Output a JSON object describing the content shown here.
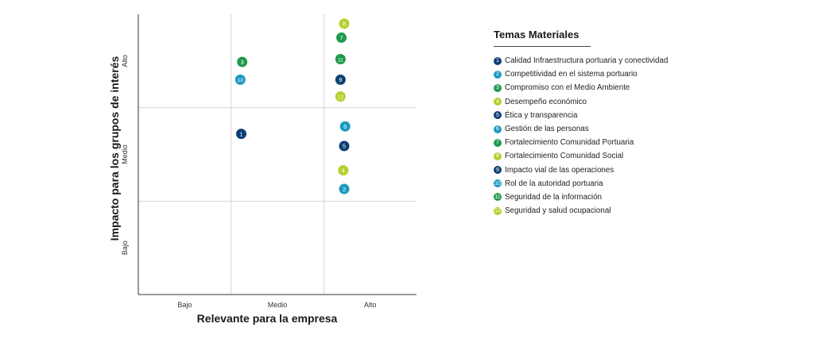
{
  "chart_data": {
    "type": "scatter",
    "xlabel": "Relevante para la empresa",
    "ylabel": "Impacto para los grupos de interés",
    "x_categories": [
      "Bajo",
      "Medio",
      "Alto"
    ],
    "y_categories": [
      "Bajo",
      "Medio",
      "Alto"
    ],
    "xlim": [
      0,
      3
    ],
    "ylim": [
      0,
      3
    ],
    "grid": true,
    "points": [
      {
        "id": "1",
        "x": 1.11,
        "y": 1.72,
        "color": "#0d3f73"
      },
      {
        "id": "2",
        "x": 2.22,
        "y": 1.13,
        "color": "#1b9ac0"
      },
      {
        "id": "3",
        "x": 1.12,
        "y": 2.49,
        "color": "#1f9a4c"
      },
      {
        "id": "4",
        "x": 2.21,
        "y": 1.33,
        "color": "#b6cf2e"
      },
      {
        "id": "5",
        "x": 2.22,
        "y": 1.59,
        "color": "#0d3f73"
      },
      {
        "id": "6",
        "x": 2.23,
        "y": 1.8,
        "color": "#1b9ac0"
      },
      {
        "id": "7",
        "x": 2.19,
        "y": 2.75,
        "color": "#1f9a4c"
      },
      {
        "id": "8",
        "x": 2.22,
        "y": 2.9,
        "color": "#b6cf2e"
      },
      {
        "id": "9",
        "x": 2.18,
        "y": 2.3,
        "color": "#0d3f73"
      },
      {
        "id": "10",
        "x": 1.1,
        "y": 2.3,
        "color": "#1b9ac0"
      },
      {
        "id": "11",
        "x": 2.18,
        "y": 2.52,
        "color": "#1f9a4c"
      },
      {
        "id": "12",
        "x": 2.18,
        "y": 2.12,
        "color": "#b6cf2e"
      }
    ]
  },
  "legend": {
    "title": "Temas Materiales",
    "placement": "right",
    "items": [
      {
        "id": "1",
        "label": "Calidad Infraestructura portuaria y conectividad",
        "color": "#0d3f73"
      },
      {
        "id": "2",
        "label": "Competitividad en el sistema portuario",
        "color": "#1b9ac0"
      },
      {
        "id": "3",
        "label": "Compromiso con el Medio Ambiente",
        "color": "#1f9a4c"
      },
      {
        "id": "4",
        "label": "Desempeño económico",
        "color": "#b6cf2e"
      },
      {
        "id": "5",
        "label": "Ética y transparencia",
        "color": "#0d3f73"
      },
      {
        "id": "6",
        "label": "Gestión de las personas",
        "color": "#1b9ac0"
      },
      {
        "id": "7",
        "label": "Fortalecimiento Comunidad Portuaria",
        "color": "#1f9a4c"
      },
      {
        "id": "8",
        "label": "Fortalecimiento Comunidad Social",
        "color": "#b6cf2e"
      },
      {
        "id": "9",
        "label": "Impacto vial de las operaciones",
        "color": "#0d3f73"
      },
      {
        "id": "10",
        "label": "Rol de la autoridad portuaria",
        "color": "#1b9ac0"
      },
      {
        "id": "11",
        "label": "Seguridad de la información",
        "color": "#1f9a4c"
      },
      {
        "id": "12",
        "label": "Seguridad y salud ocupacional",
        "color": "#b6cf2e"
      }
    ]
  }
}
